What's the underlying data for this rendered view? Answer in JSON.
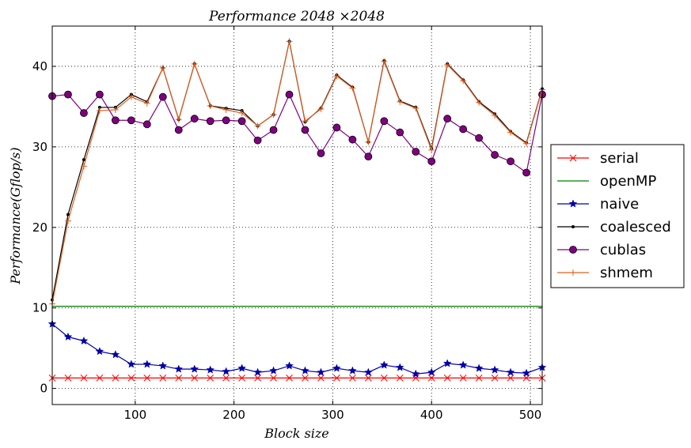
{
  "chart_data": {
    "type": "line",
    "title": "Performance 2048 ×2048",
    "xlabel": "Block size",
    "ylabel": "Performance(Gflop/s)",
    "xlim": [
      16,
      512
    ],
    "ylim": [
      -2,
      45
    ],
    "x_ticks": [
      100,
      200,
      300,
      400,
      500
    ],
    "y_ticks": [
      0,
      10,
      20,
      30,
      40
    ],
    "grid": true,
    "legend_position": "outside-right",
    "x": [
      16,
      32,
      48,
      64,
      80,
      96,
      112,
      128,
      144,
      160,
      176,
      192,
      208,
      224,
      240,
      256,
      272,
      288,
      304,
      320,
      336,
      352,
      368,
      384,
      400,
      416,
      432,
      448,
      464,
      480,
      496,
      512
    ],
    "series": [
      {
        "name": "serial",
        "color": "#ff0000",
        "marker": "x",
        "values": [
          1.3,
          1.3,
          1.3,
          1.3,
          1.3,
          1.3,
          1.3,
          1.3,
          1.3,
          1.3,
          1.3,
          1.3,
          1.3,
          1.3,
          1.3,
          1.3,
          1.3,
          1.3,
          1.3,
          1.3,
          1.3,
          1.3,
          1.3,
          1.3,
          1.3,
          1.3,
          1.3,
          1.3,
          1.3,
          1.3,
          1.3,
          1.3
        ]
      },
      {
        "name": "openMP",
        "color": "#008000",
        "marker": "none",
        "values": [
          10.2,
          10.2,
          10.2,
          10.2,
          10.2,
          10.2,
          10.2,
          10.2,
          10.2,
          10.2,
          10.2,
          10.2,
          10.2,
          10.2,
          10.2,
          10.2,
          10.2,
          10.2,
          10.2,
          10.2,
          10.2,
          10.2,
          10.2,
          10.2,
          10.2,
          10.2,
          10.2,
          10.2,
          10.2,
          10.2,
          10.2,
          10.2
        ]
      },
      {
        "name": "naive",
        "color": "#0000aa",
        "marker": "star",
        "values": [
          8.0,
          6.4,
          5.9,
          4.6,
          4.2,
          3.0,
          3.0,
          2.8,
          2.4,
          2.4,
          2.3,
          2.1,
          2.5,
          2.0,
          2.2,
          2.8,
          2.2,
          2.0,
          2.5,
          2.2,
          2.0,
          2.9,
          2.6,
          1.8,
          2.0,
          3.1,
          2.9,
          2.5,
          2.3,
          2.0,
          1.9,
          2.6
        ]
      },
      {
        "name": "coalesced",
        "color": "#000000",
        "marker": "dot",
        "values": [
          11.0,
          21.6,
          28.4,
          34.9,
          34.9,
          36.5,
          35.6,
          39.8,
          33.4,
          40.3,
          35.1,
          34.8,
          34.5,
          32.6,
          34.0,
          43.1,
          33.1,
          34.8,
          38.9,
          37.4,
          30.6,
          40.7,
          35.7,
          34.9,
          29.8,
          40.3,
          38.3,
          35.6,
          34.1,
          31.9,
          30.5,
          37.2
        ]
      },
      {
        "name": "cublas",
        "color": "#800080",
        "marker": "circle",
        "values": [
          36.3,
          36.5,
          34.2,
          36.5,
          33.3,
          33.3,
          32.8,
          36.2,
          32.1,
          33.5,
          33.2,
          33.3,
          33.2,
          30.8,
          32.1,
          36.5,
          32.1,
          29.2,
          32.4,
          30.9,
          28.8,
          33.2,
          31.8,
          29.4,
          28.2,
          33.5,
          32.2,
          31.1,
          29.0,
          28.2,
          26.8,
          36.5
        ]
      },
      {
        "name": "shmem",
        "color": "#e06020",
        "marker": "plus",
        "values": [
          10.5,
          20.8,
          27.6,
          34.5,
          34.6,
          36.2,
          35.4,
          39.8,
          33.4,
          40.3,
          35.1,
          34.6,
          34.2,
          32.6,
          34.0,
          43.1,
          33.2,
          34.7,
          38.8,
          37.3,
          30.6,
          40.6,
          35.6,
          34.8,
          29.6,
          40.2,
          38.2,
          35.5,
          33.9,
          31.8,
          30.4,
          37.1
        ]
      }
    ]
  }
}
